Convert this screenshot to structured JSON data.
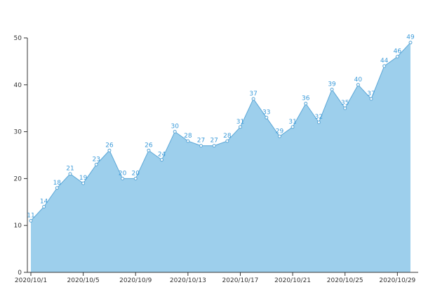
{
  "chart_data": {
    "type": "area",
    "title": "",
    "xlabel": "",
    "ylabel": "",
    "x": [
      "2020/10/1",
      "2020/10/2",
      "2020/10/3",
      "2020/10/4",
      "2020/10/5",
      "2020/10/6",
      "2020/10/7",
      "2020/10/8",
      "2020/10/9",
      "2020/10/10",
      "2020/10/11",
      "2020/10/12",
      "2020/10/13",
      "2020/10/14",
      "2020/10/15",
      "2020/10/16",
      "2020/10/17",
      "2020/10/18",
      "2020/10/19",
      "2020/10/20",
      "2020/10/21",
      "2020/10/22",
      "2020/10/23",
      "2020/10/24",
      "2020/10/25",
      "2020/10/26",
      "2020/10/27",
      "2020/10/28",
      "2020/10/29",
      "2020/10/30"
    ],
    "x_tick_labels": [
      "2020/10/1",
      "2020/10/5",
      "2020/10/9",
      "2020/10/13",
      "2020/10/17",
      "2020/10/21",
      "2020/10/25",
      "2020/10/29"
    ],
    "series": [
      {
        "name": "",
        "values": [
          11,
          14,
          18,
          21,
          19,
          23,
          26,
          20,
          20,
          26,
          24,
          30,
          28,
          27,
          27,
          28,
          31,
          37,
          33,
          29,
          31,
          36,
          32,
          39,
          35,
          40,
          37,
          44,
          46,
          49
        ]
      }
    ],
    "ylim": [
      0,
      50
    ],
    "y_ticks": [
      0,
      10,
      20,
      30,
      40,
      50
    ],
    "grid": false,
    "legend": "none",
    "show_data_labels": true,
    "colors": {
      "area_fill": "#9dcfec",
      "line": "#5aa6d6",
      "label": "#3a9ad9",
      "marker_fill": "#ffffff",
      "axis": "#333333"
    }
  }
}
